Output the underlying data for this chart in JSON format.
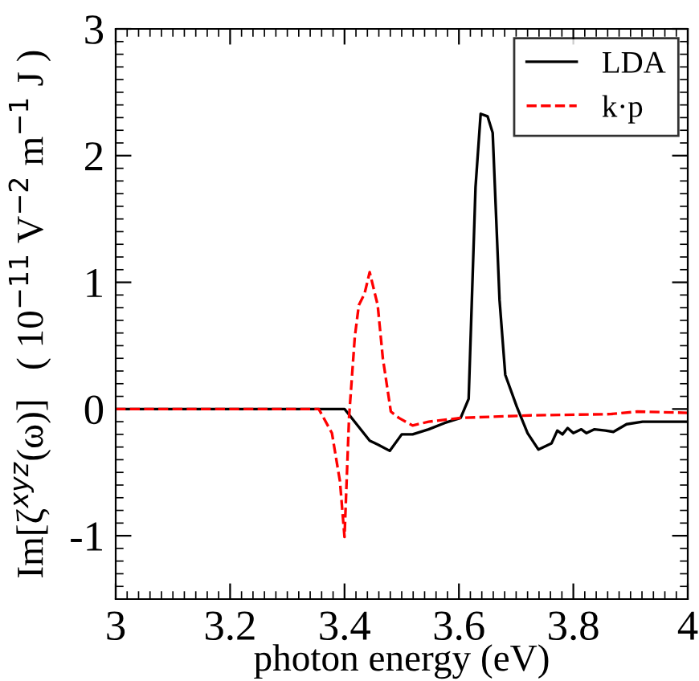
{
  "chart_data": {
    "type": "line",
    "xlabel": "photon energy (eV)",
    "ylabel": "Im[ζ$^{xyz}$(ω)]   ( 10$^{−11}$ V$^{−2}$ m$^{−1}$ J )",
    "xlim": [
      3,
      4
    ],
    "ylim": [
      -1.5,
      3
    ],
    "xticks": [
      3,
      3.2,
      3.4,
      3.6,
      3.8,
      4
    ],
    "yticks": [
      -1,
      0,
      1,
      2,
      3
    ],
    "grid": false,
    "legend": "top right",
    "marker": "none",
    "series": [
      {
        "name": "LDA",
        "color": "#000000",
        "line_style": "solid",
        "x": [
          3.0,
          3.4,
          3.444,
          3.458,
          3.479,
          3.5,
          3.519,
          3.547,
          3.575,
          3.603,
          3.617,
          3.629,
          3.638,
          3.65,
          3.659,
          3.671,
          3.681,
          3.701,
          3.72,
          3.739,
          3.762,
          3.772,
          3.781,
          3.79,
          3.8,
          3.814,
          3.823,
          3.837,
          3.856,
          3.87,
          3.893,
          3.921,
          3.959,
          4.0
        ],
        "values": [
          0,
          0,
          -0.25,
          -0.28,
          -0.33,
          -0.2,
          -0.2,
          -0.16,
          -0.11,
          -0.07,
          0.08,
          1.75,
          2.33,
          2.31,
          2.18,
          0.86,
          0.27,
          0.02,
          -0.19,
          -0.32,
          -0.27,
          -0.17,
          -0.2,
          -0.15,
          -0.19,
          -0.16,
          -0.19,
          -0.16,
          -0.17,
          -0.18,
          -0.12,
          -0.1,
          -0.1,
          -0.1
        ]
      },
      {
        "name": "k·p",
        "color": "#ff0000",
        "line_style": "dashed",
        "x": [
          3.0,
          3.355,
          3.378,
          3.392,
          3.4,
          3.408,
          3.418,
          3.425,
          3.435,
          3.444,
          3.458,
          3.467,
          3.481,
          3.495,
          3.519,
          3.547,
          3.603,
          3.725,
          3.865,
          3.912,
          4.0
        ],
        "values": [
          0,
          0,
          -0.19,
          -0.57,
          -1.01,
          -0.06,
          0.57,
          0.82,
          0.91,
          1.08,
          0.82,
          0.4,
          -0.02,
          -0.07,
          -0.13,
          -0.1,
          -0.07,
          -0.05,
          -0.04,
          -0.02,
          -0.03
        ]
      }
    ]
  }
}
